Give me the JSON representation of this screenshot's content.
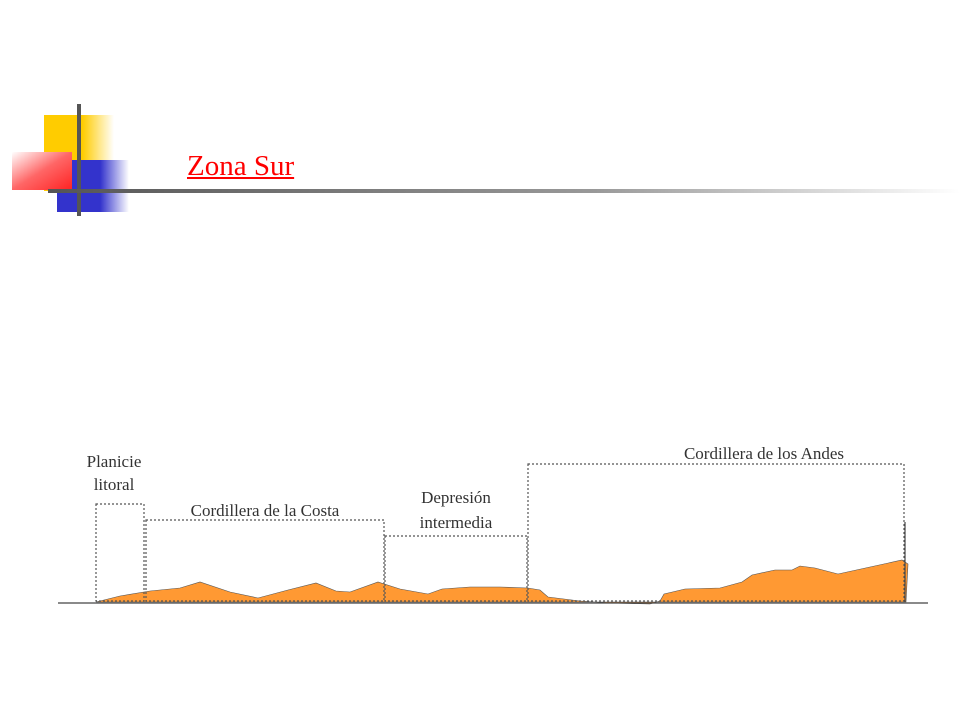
{
  "slide": {
    "title": "Zona Sur"
  },
  "diagram": {
    "labels": {
      "planicie_line1": "Planicie",
      "planicie_line2": "litoral",
      "cordillera_costa": "Cordillera de la Costa",
      "depresion_line1": "Depresión",
      "depresion_line2": "intermedia",
      "cordillera_andes": "Cordillera de los Andes"
    }
  },
  "colors": {
    "title": "#ff0000",
    "terrain": "#ff9933",
    "deco_yellow": "#ffcc00",
    "deco_blue": "#3333cc",
    "deco_red": "#ff3333",
    "rule": "#6b6b6b"
  }
}
